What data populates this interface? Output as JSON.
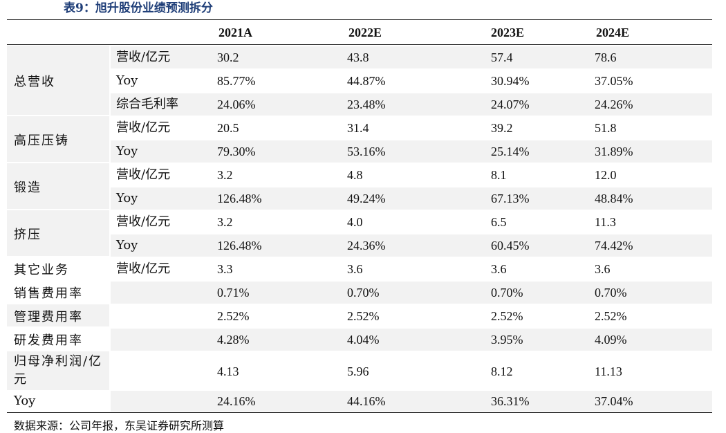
{
  "title": "表9：旭升股份业绩预测拆分",
  "columns": [
    "2021A",
    "2022E",
    "2023E",
    "2024E"
  ],
  "rows": [
    {
      "metric": "营收/亿元",
      "values": [
        "30.2",
        "43.8",
        "57.4",
        "78.6"
      ]
    },
    {
      "metric": "Yoy",
      "values": [
        "85.77%",
        "44.87%",
        "30.94%",
        "37.05%"
      ]
    },
    {
      "metric": "综合毛利率",
      "values": [
        "24.06%",
        "23.48%",
        "24.07%",
        "24.26%"
      ]
    },
    {
      "metric": "营收/亿元",
      "values": [
        "20.5",
        "31.4",
        "39.2",
        "51.8"
      ]
    },
    {
      "metric": "Yoy",
      "values": [
        "79.30%",
        "53.16%",
        "25.14%",
        "31.89%"
      ]
    },
    {
      "metric": "营收/亿元",
      "values": [
        "3.2",
        "4.8",
        "8.1",
        "12.0"
      ]
    },
    {
      "metric": "Yoy",
      "values": [
        "126.48%",
        "49.24%",
        "67.13%",
        "48.84%"
      ]
    },
    {
      "metric": "营收/亿元",
      "values": [
        "3.2",
        "4.0",
        "6.5",
        "11.3"
      ]
    },
    {
      "metric": "Yoy",
      "values": [
        "126.48%",
        "24.36%",
        "60.45%",
        "74.42%"
      ]
    },
    {
      "metric": "营收/亿元",
      "values": [
        "3.3",
        "3.6",
        "3.6",
        "3.6"
      ]
    },
    {
      "metric": "",
      "values": [
        "0.71%",
        "0.70%",
        "0.70%",
        "0.70%"
      ]
    },
    {
      "metric": "",
      "values": [
        "2.52%",
        "2.52%",
        "2.52%",
        "2.52%"
      ]
    },
    {
      "metric": "",
      "values": [
        "4.28%",
        "4.04%",
        "3.95%",
        "4.09%"
      ]
    },
    {
      "metric": "",
      "values": [
        "4.13",
        "5.96",
        "8.12",
        "11.13"
      ]
    },
    {
      "metric": "",
      "values": [
        "24.16%",
        "44.16%",
        "36.31%",
        "37.04%"
      ]
    }
  ],
  "groups": [
    {
      "label": "总营收"
    },
    {
      "label": "高压压铸"
    },
    {
      "label": "锻造"
    },
    {
      "label": "挤压"
    },
    {
      "label": "其它业务"
    },
    {
      "label": "销售费用率"
    },
    {
      "label": "管理费用率"
    },
    {
      "label": "研发费用率"
    },
    {
      "label": "归母净利润/亿元"
    },
    {
      "label": "Yoy"
    }
  ],
  "source": "数据来源：公司年报，东吴证券研究所测算"
}
